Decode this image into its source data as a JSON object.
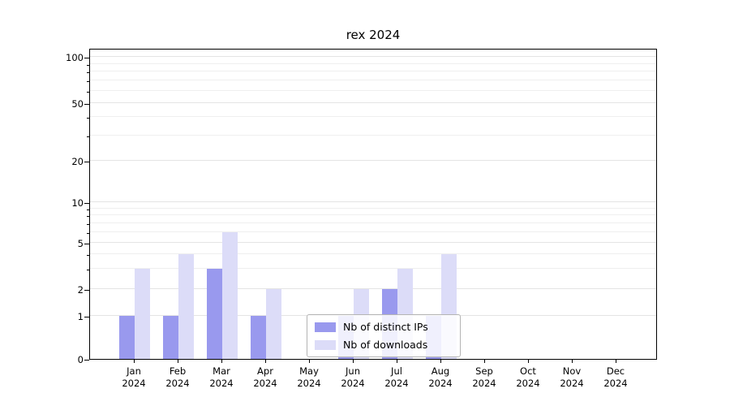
{
  "title": "rex 2024",
  "colors": {
    "distinct_ips": "#9999ee",
    "downloads": "#dcdcf8",
    "grid_major": "#e4e4e4",
    "grid_minor": "#efefef",
    "axis": "#000000",
    "legend_border": "#b4b4b4"
  },
  "legend": {
    "items": [
      {
        "label": "Nb of distinct IPs",
        "series": "distinct_ips"
      },
      {
        "label": "Nb of downloads",
        "series": "downloads"
      }
    ]
  },
  "chart_data": {
    "type": "bar",
    "title": "rex 2024",
    "categories": [
      "Jan 2024",
      "Feb 2024",
      "Mar 2024",
      "Apr 2024",
      "May 2024",
      "Jun 2024",
      "Jul 2024",
      "Aug 2024",
      "Sep 2024",
      "Oct 2024",
      "Nov 2024",
      "Dec 2024"
    ],
    "series": [
      {
        "name": "Nb of distinct IPs",
        "values": [
          1,
          1,
          3,
          1,
          0,
          1,
          2,
          1,
          0,
          0,
          0,
          0
        ]
      },
      {
        "name": "Nb of downloads",
        "values": [
          3,
          4,
          6,
          2,
          0,
          2,
          3,
          4,
          0,
          0,
          0,
          0
        ]
      }
    ],
    "y_ticks": [
      0,
      1,
      2,
      5,
      10,
      20,
      50,
      100
    ],
    "y_minor_ticks": [
      3,
      4,
      6,
      7,
      8,
      9,
      30,
      40,
      60,
      70,
      80,
      90
    ],
    "y_scale": "symlog",
    "ylim": [
      0,
      100
    ],
    "xlabel": "",
    "ylabel": "",
    "grid": true,
    "legend_position": "lower center"
  }
}
